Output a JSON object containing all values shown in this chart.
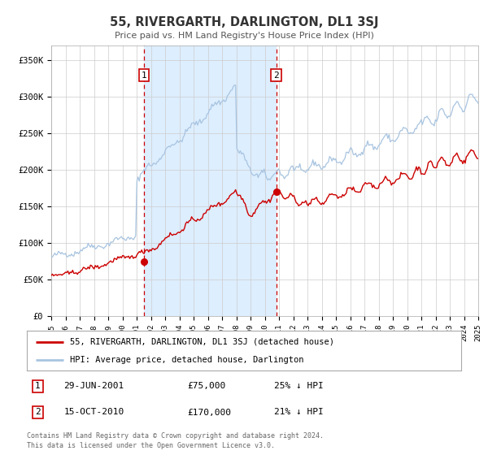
{
  "title": "55, RIVERGARTH, DARLINGTON, DL1 3SJ",
  "subtitle": "Price paid vs. HM Land Registry's House Price Index (HPI)",
  "legend_line1": "55, RIVERGARTH, DARLINGTON, DL1 3SJ (detached house)",
  "legend_line2": "HPI: Average price, detached house, Darlington",
  "transaction1_date": "29-JUN-2001",
  "transaction1_price": "£75,000",
  "transaction1_hpi": "25% ↓ HPI",
  "transaction2_date": "15-OCT-2010",
  "transaction2_price": "£170,000",
  "transaction2_hpi": "21% ↓ HPI",
  "transaction1_year": 2001.5,
  "transaction2_year": 2010.8,
  "transaction1_price_val": 75000,
  "transaction2_price_val": 170000,
  "ylim": [
    0,
    370000
  ],
  "xlim_start": 1995,
  "xlim_end": 2025,
  "hpi_color": "#a8c4e0",
  "price_color": "#cc0000",
  "shading_color": "#ddeeff",
  "grid_color": "#cccccc",
  "footnote1": "Contains HM Land Registry data © Crown copyright and database right 2024.",
  "footnote2": "This data is licensed under the Open Government Licence v3.0."
}
